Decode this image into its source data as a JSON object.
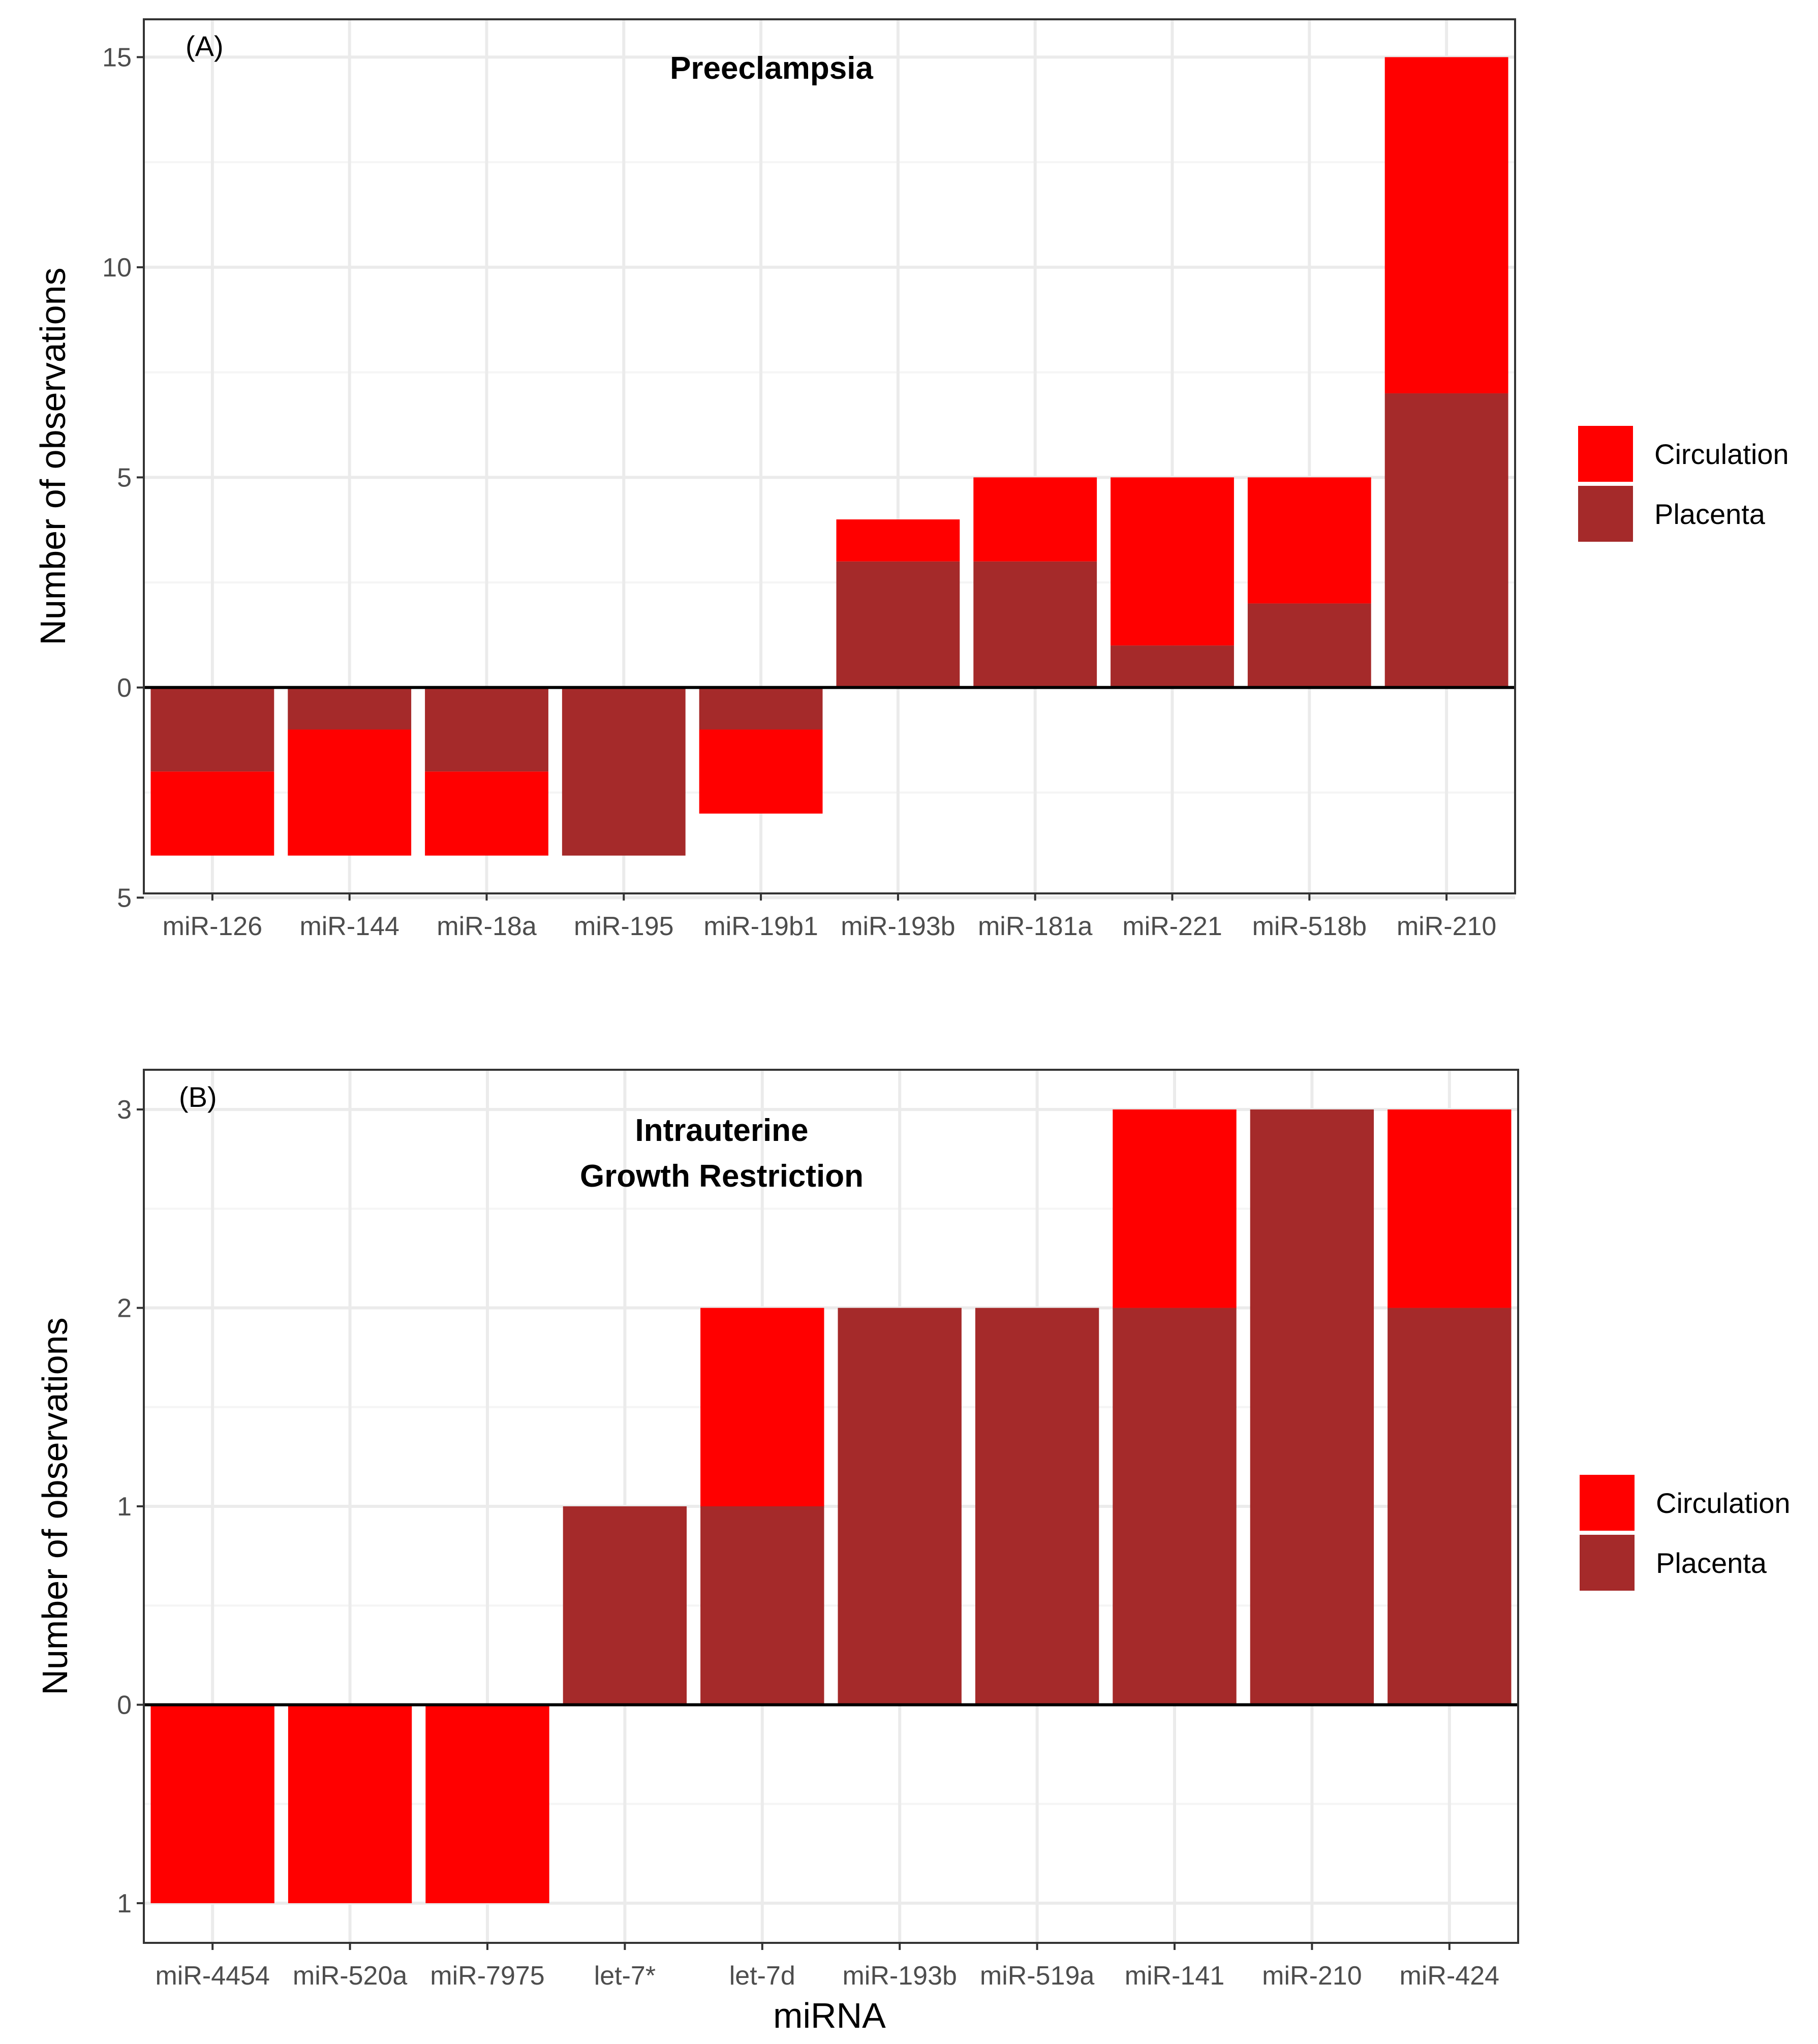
{
  "colors": {
    "circulation": "#ff0000",
    "placenta": "#a52a2a",
    "grid_major": "#ebebeb",
    "grid_minor": "#f5f5f5",
    "panel_border": "#333333",
    "zero_line": "#000000"
  },
  "shared": {
    "xlabel": "miRNA",
    "ylabel": "Number of observations"
  },
  "chart_data": [
    {
      "type": "bar",
      "stacked": true,
      "panel_label": "(A)",
      "title": "Preeclampsia",
      "title_lines": [
        "Preeclampsia"
      ],
      "xlabel": "",
      "ylabel": "Number of observations",
      "ylim": [
        -4.9,
        15.9
      ],
      "y_ticks": [
        -5,
        0,
        5,
        10,
        15
      ],
      "y_tick_labels": [
        "5",
        "0",
        "5",
        "10",
        "15"
      ],
      "categories": [
        "miR-126",
        "miR-144",
        "miR-18a",
        "miR-195",
        "miR-19b1",
        "miR-193b",
        "miR-181a",
        "miR-221",
        "miR-518b",
        "miR-210"
      ],
      "series": [
        {
          "name": "Placenta",
          "values": [
            -2,
            -1,
            -2,
            -4,
            -1,
            3,
            3,
            1,
            2,
            7
          ]
        },
        {
          "name": "Circulation",
          "values": [
            -2,
            -3,
            -2,
            0,
            -2,
            1,
            2,
            4,
            3,
            8
          ]
        }
      ],
      "legend": {
        "position": "right",
        "entries": [
          "Circulation",
          "Placenta"
        ]
      }
    },
    {
      "type": "bar",
      "stacked": true,
      "panel_label": "(B)",
      "title": "Intrauterine Growth Restriction",
      "title_lines": [
        "Intrauterine",
        "Growth Restriction"
      ],
      "xlabel": "miRNA",
      "ylabel": "Number of observations",
      "ylim": [
        -1.2,
        3.2
      ],
      "y_ticks": [
        -1,
        0,
        1,
        2,
        3
      ],
      "y_tick_labels": [
        "1",
        "0",
        "1",
        "2",
        "3"
      ],
      "categories": [
        "miR-4454",
        "miR-520a",
        "miR-7975",
        "let-7*",
        "let-7d",
        "miR-193b",
        "miR-519a",
        "miR-141",
        "miR-210",
        "miR-424"
      ],
      "series": [
        {
          "name": "Placenta",
          "values": [
            0,
            0,
            0,
            1,
            1,
            2,
            2,
            2,
            3,
            2
          ]
        },
        {
          "name": "Circulation",
          "values": [
            -1,
            -1,
            -1,
            0,
            1,
            0,
            0,
            1,
            0,
            1
          ]
        }
      ],
      "legend": {
        "position": "right",
        "entries": [
          "Circulation",
          "Placenta"
        ]
      }
    }
  ]
}
